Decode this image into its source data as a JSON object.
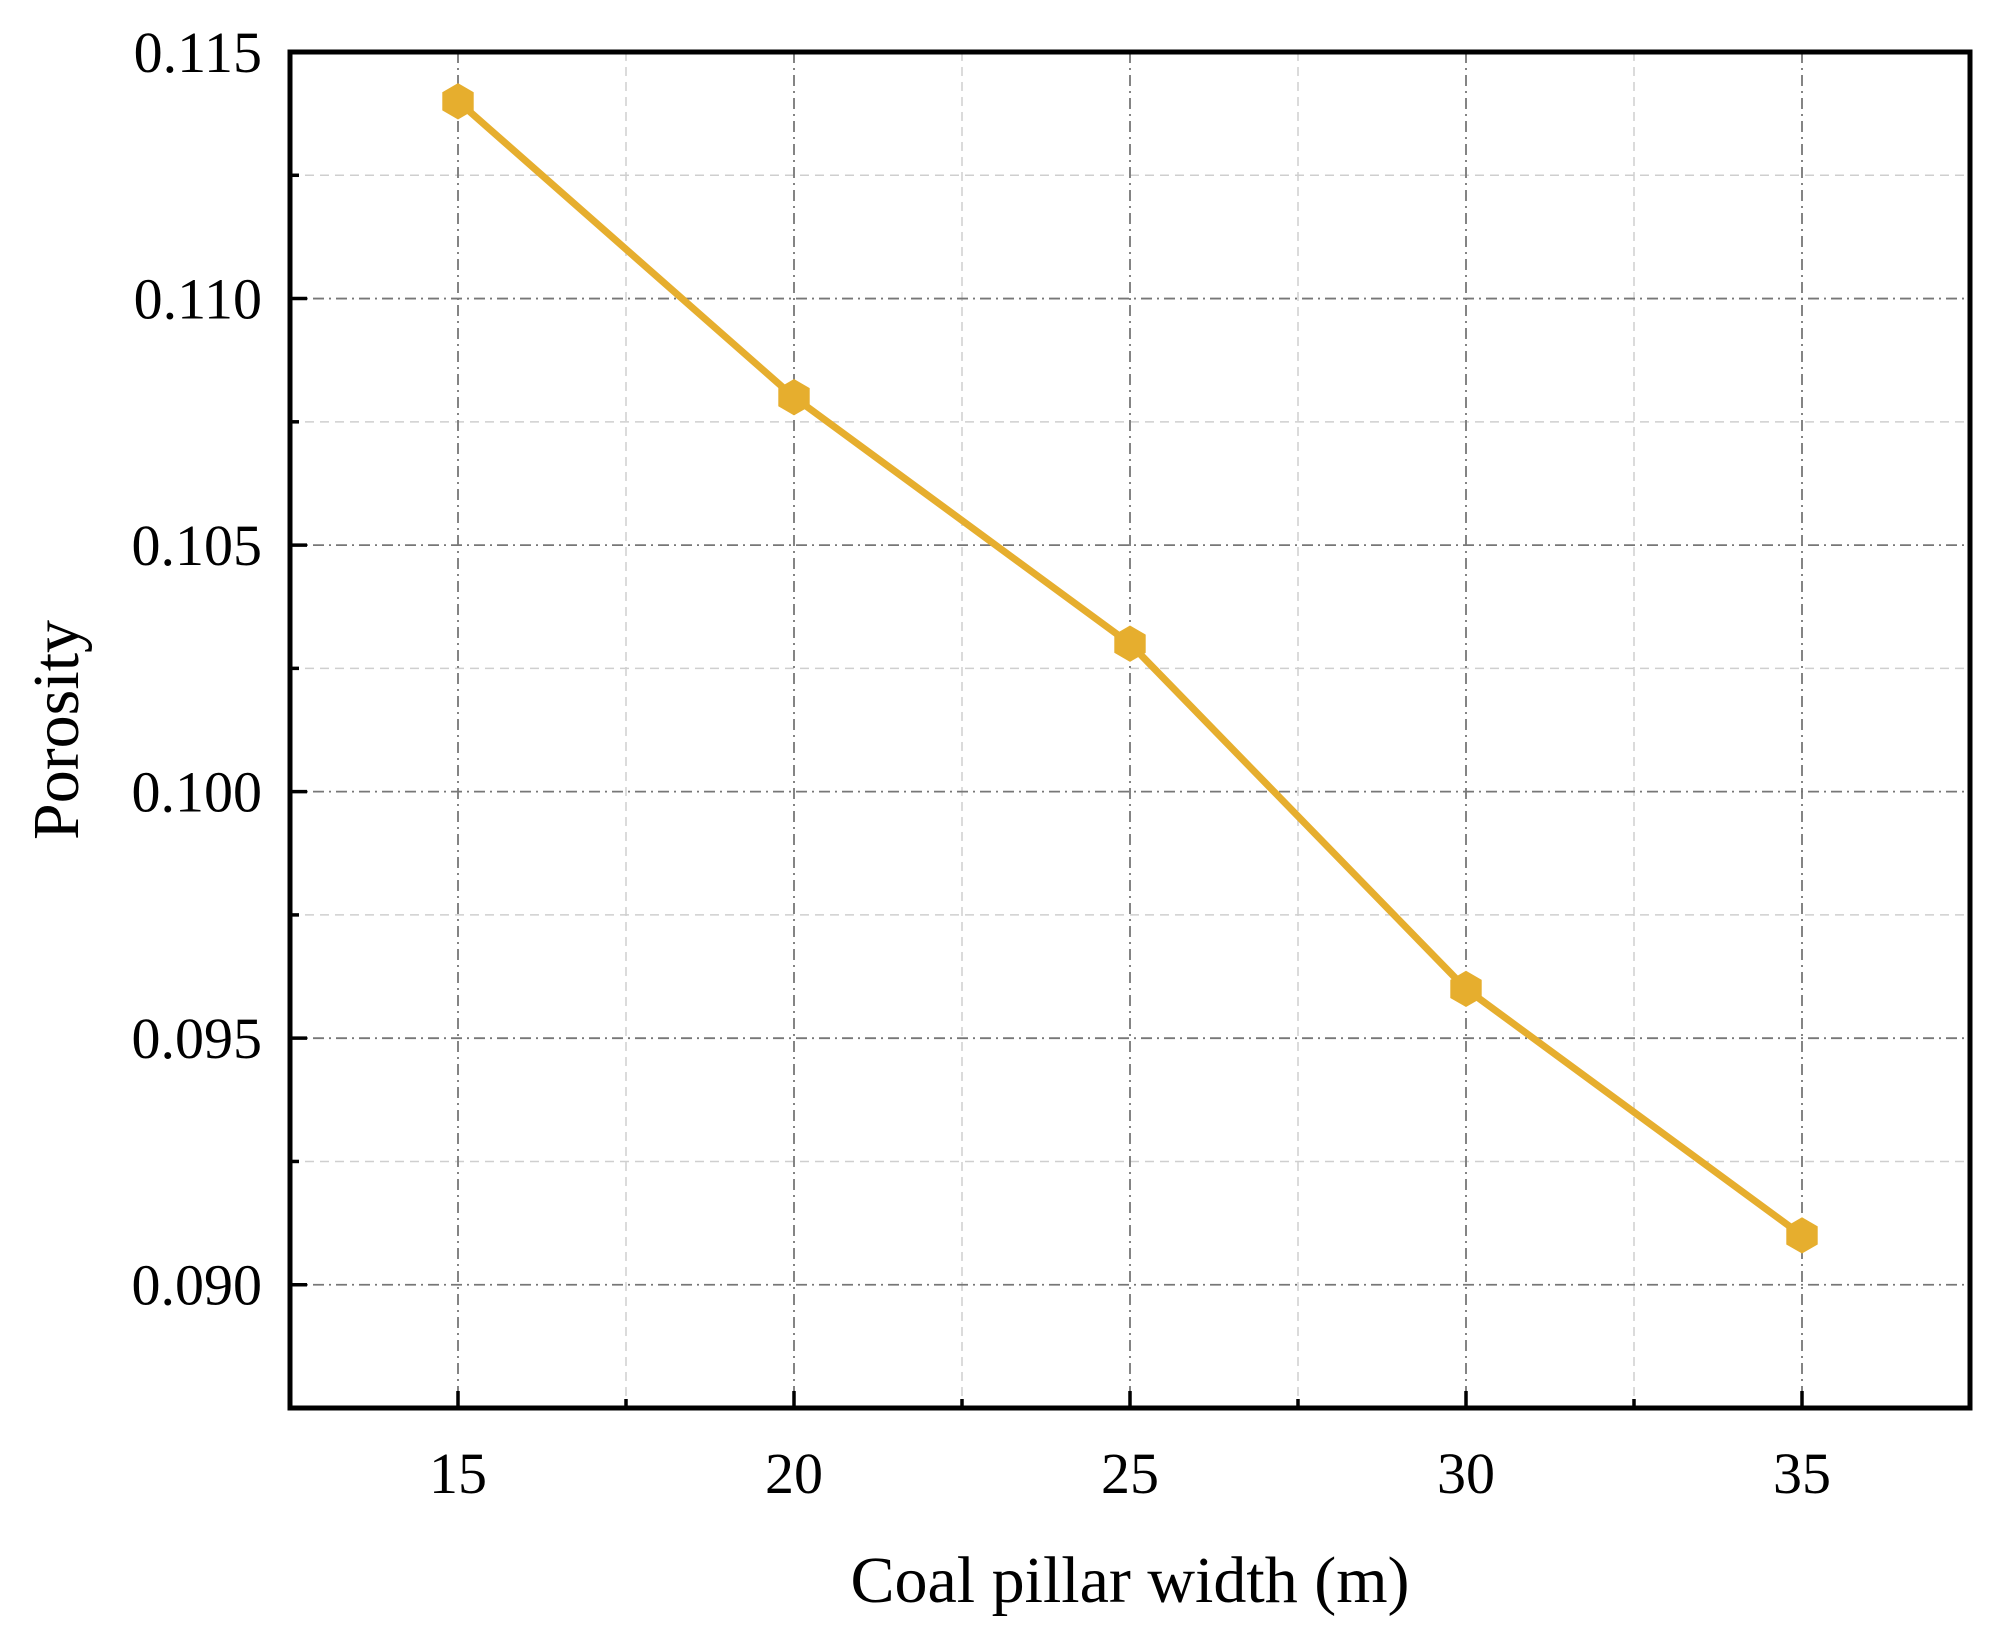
{
  "chart_data": {
    "type": "line",
    "title": "",
    "xlabel": "Coal pillar width (m)",
    "ylabel": "Porosity",
    "x": [
      15,
      20,
      25,
      30,
      35
    ],
    "series": [
      {
        "name": "Porosity",
        "values": [
          0.114,
          0.108,
          0.103,
          0.096,
          0.091
        ],
        "color": "#E6AE2E",
        "marker": "hexagon"
      }
    ],
    "xlim": [
      12.5,
      37.5
    ],
    "ylim": [
      0.0875,
      0.115
    ],
    "xticks": [
      15,
      20,
      25,
      30,
      35
    ],
    "xtick_labels": [
      "15",
      "20",
      "25",
      "30",
      "35"
    ],
    "yticks": [
      0.09,
      0.095,
      0.1,
      0.105,
      0.11,
      0.115
    ],
    "ytick_labels": [
      "0.090",
      "0.095",
      "0.100",
      "0.105",
      "0.110",
      "0.115"
    ],
    "grid": true,
    "legend": "none"
  },
  "colors": {
    "line": "#E6AE2E",
    "axis": "#000000",
    "major_grid": "#777777",
    "minor_grid": "#cfcfcf"
  }
}
